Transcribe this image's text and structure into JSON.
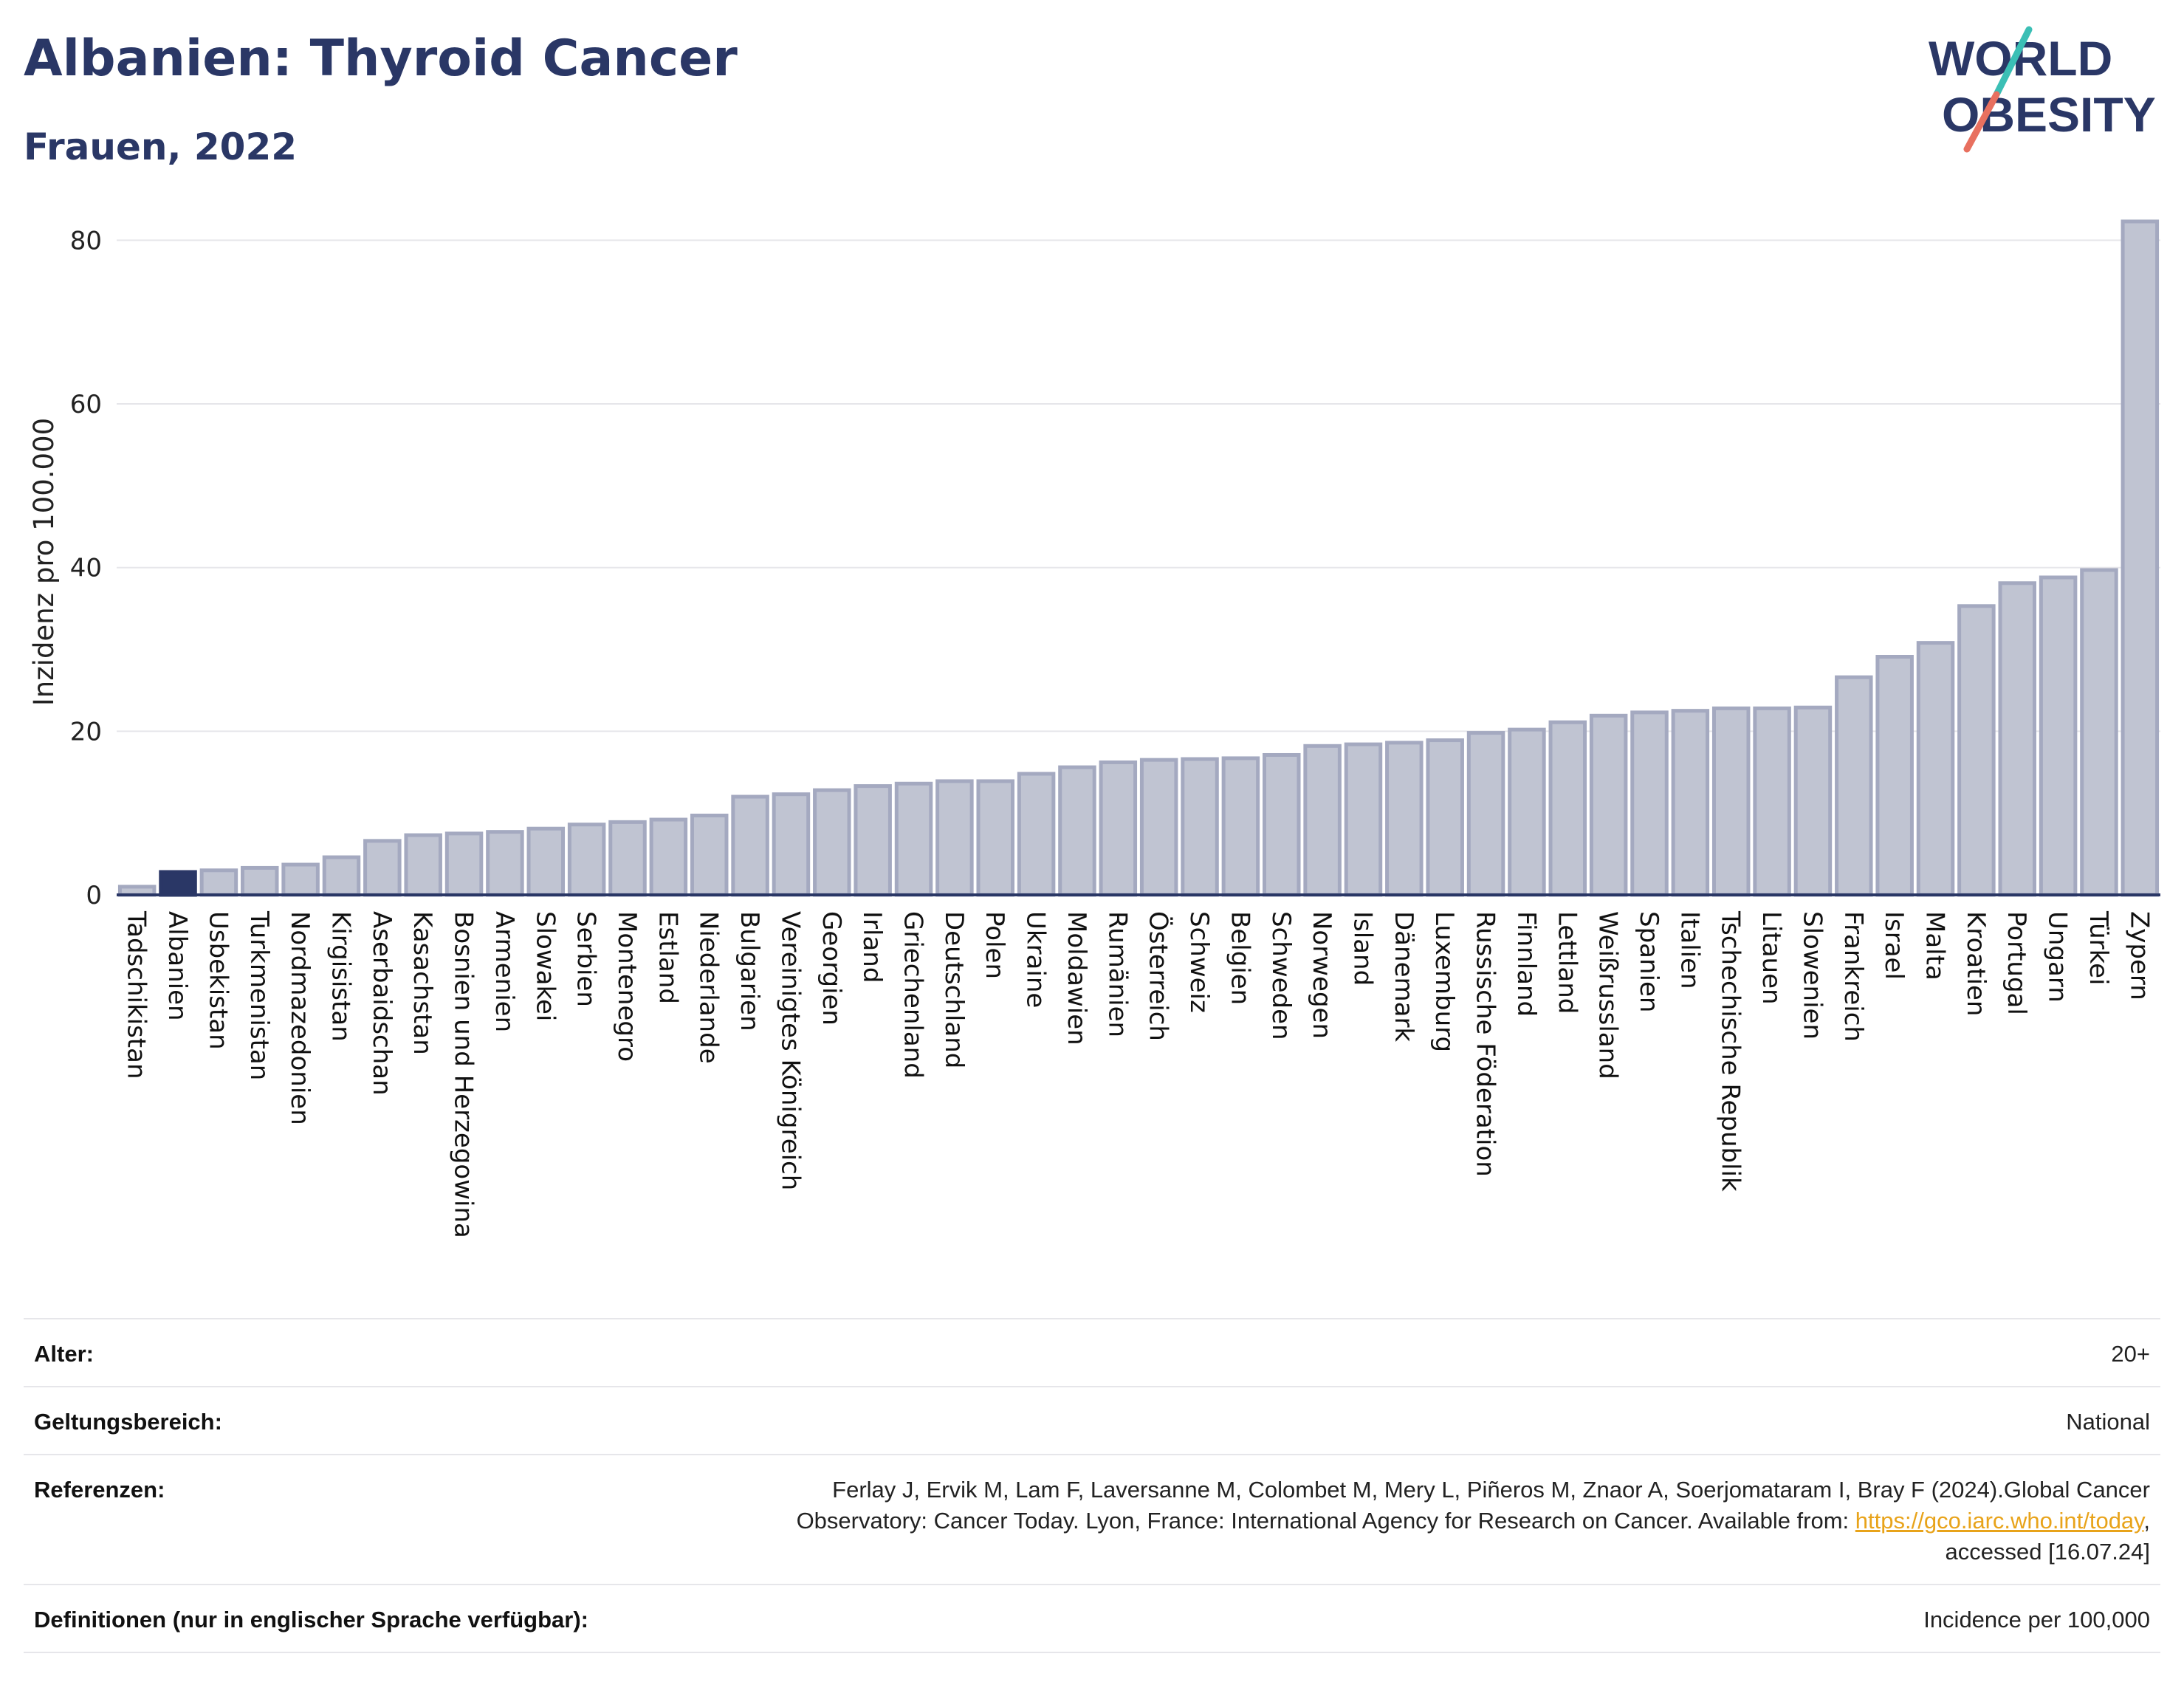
{
  "header": {
    "title": "Albanien: Thyroid Cancer",
    "subtitle": "Frauen, 2022"
  },
  "logo": {
    "line1": "WORLD",
    "line2": "OBESITY",
    "colors": {
      "text": "#2a3766",
      "slash_top": "#3bbfb5",
      "slash_bottom": "#e8705f"
    }
  },
  "chart_data": {
    "type": "bar",
    "title": "Albanien: Thyroid Cancer",
    "subtitle": "Frauen, 2022",
    "xlabel": "",
    "ylabel": "Inzidenz pro 100.000",
    "ylim": [
      0,
      85
    ],
    "yticks": [
      0,
      20,
      40,
      60,
      80
    ],
    "grid": true,
    "highlight": "Albanien",
    "colors": {
      "bar": "#c0c4d2",
      "bar_edge": "#a4a9c0",
      "highlight": "#2a3766",
      "grid": "#e6e6ea",
      "axis": "#2a3766"
    },
    "categories": [
      "Tadschikistan",
      "Albanien",
      "Usbekistan",
      "Turkmenistan",
      "Nordmazedonien",
      "Kirgisistan",
      "Aserbaidschan",
      "Kasachstan",
      "Bosnien und Herzegowina",
      "Armenien",
      "Slowakei",
      "Serbien",
      "Montenegro",
      "Estland",
      "Niederlande",
      "Bulgarien",
      "Vereinigtes Königreich",
      "Georgien",
      "Irland",
      "Griechenland",
      "Deutschland",
      "Polen",
      "Ukraine",
      "Moldawien",
      "Rumänien",
      "Österreich",
      "Schweiz",
      "Belgien",
      "Schweden",
      "Norwegen",
      "Island",
      "Dänemark",
      "Luxemburg",
      "Russische Föderation",
      "Finnland",
      "Lettland",
      "Weißrussland",
      "Spanien",
      "Italien",
      "Tschechische Republik",
      "Litauen",
      "Slowenien",
      "Frankreich",
      "Israel",
      "Malta",
      "Kroatien",
      "Portugal",
      "Ungarn",
      "Türkei",
      "Zypern"
    ],
    "values": [
      1.0,
      2.8,
      3.0,
      3.3,
      3.7,
      4.6,
      6.6,
      7.3,
      7.5,
      7.7,
      8.1,
      8.6,
      8.9,
      9.2,
      9.7,
      12.0,
      12.3,
      12.8,
      13.3,
      13.6,
      13.9,
      13.9,
      14.8,
      15.6,
      16.2,
      16.5,
      16.6,
      16.7,
      17.1,
      18.2,
      18.4,
      18.6,
      18.9,
      19.8,
      20.2,
      21.1,
      21.9,
      22.3,
      22.5,
      22.8,
      22.8,
      22.9,
      26.6,
      29.1,
      30.8,
      35.3,
      38.1,
      38.8,
      39.7,
      82.3
    ]
  },
  "meta": {
    "rows": [
      {
        "label": "Alter:",
        "value": "20+"
      },
      {
        "label": "Geltungsbereich:",
        "value": "National"
      },
      {
        "label": "Referenzen:",
        "value_line1": "Ferlay J, Ervik M, Lam F, Laversanne M, Colombet M, Mery L, Piñeros M, Znaor A, Soerjomataram I, Bray F (2024).Global Cancer",
        "value_line2_pre": "Observatory: Cancer Today. Lyon, France: International Agency for Research on Cancer. Available from: ",
        "value_link": "https://gco.iarc.who.int/today",
        "value_line2_post": ",",
        "value_line3": "accessed [16.07.24]"
      },
      {
        "label": "Definitionen (nur in englischer Sprache verfügbar):",
        "value": "Incidence per 100,000"
      }
    ]
  }
}
